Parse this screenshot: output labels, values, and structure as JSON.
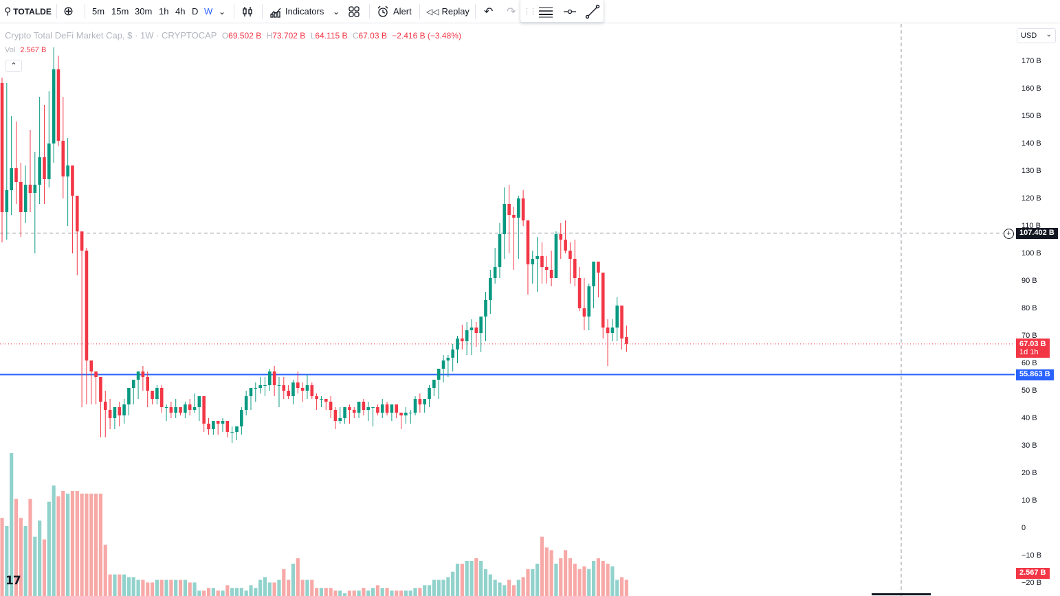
{
  "toolbar": {
    "symbol": "TOTALDE",
    "intervals": [
      "5m",
      "15m",
      "30m",
      "1h",
      "4h",
      "D",
      "W"
    ],
    "active_interval": "W",
    "indicators_label": "Indicators",
    "alert_label": "Alert",
    "replay_label": "Replay",
    "icons": [
      "search-icon",
      "add-symbol-icon",
      "interval-dropdown-icon",
      "candles-icon",
      "indicators-icon",
      "templates-icon",
      "alert-icon",
      "replay-icon",
      "undo-icon",
      "redo-icon",
      "drag-handle-icon",
      "line-width-icon",
      "line-style-icon",
      "trendline-icon"
    ]
  },
  "legend": {
    "title": "Crypto Total DeFi Market Cap, $ · 1W · CRYPTOCAP",
    "o_label": "O",
    "o": "69.502 B",
    "h_label": "H",
    "h": "73.702 B",
    "l_label": "L",
    "l": "64.115 B",
    "c_label": "C",
    "c": "67.03 B",
    "change": "−2.416 B (−3.48%)",
    "vol_label": "Vol",
    "vol": "2.567 B",
    "collapse_icon": "chevron-up-icon"
  },
  "price_axis": {
    "currency": "USD",
    "labels": [
      "170 B",
      "160 B",
      "150 B",
      "140 B",
      "130 B",
      "120 B",
      "110 B",
      "100 B",
      "90 B",
      "80 B",
      "70 B",
      "60 B",
      "50 B",
      "40 B",
      "30 B",
      "20 B",
      "10 B",
      "0",
      "−10 B",
      "−20 B"
    ],
    "last_price": "67.03 B",
    "countdown": "1d 1h",
    "horizontal_line": "55.863 B",
    "crosshair_price": "107.402 B",
    "volume_last": "2.567 B"
  },
  "colors": {
    "up": "#089981",
    "down": "#f23645",
    "up_vol": "#92d2cc",
    "down_vol": "#f7a9a7",
    "hline": "#2962ff"
  },
  "chart_data": {
    "type": "candlestick",
    "title": "Crypto Total DeFi Market Cap, $ · 1W · CRYPTOCAP",
    "unit": "B",
    "ylim": [
      -20,
      175
    ],
    "horizontal_line": 55.863,
    "crosshair_price": 107.402,
    "series": [
      {
        "name": "OHLC",
        "values": [
          [
            162,
            164,
            104,
            115
          ],
          [
            115,
            162,
            105,
            123
          ],
          [
            123,
            150,
            114,
            131
          ],
          [
            131,
            148,
            118,
            126
          ],
          [
            126,
            133,
            106,
            115
          ],
          [
            115,
            132,
            111,
            125
          ],
          [
            125,
            145,
            115,
            122
          ],
          [
            122,
            137,
            100,
            125
          ],
          [
            125,
            157,
            118,
            135
          ],
          [
            135,
            154,
            118,
            127
          ],
          [
            127,
            159,
            124,
            140
          ],
          [
            140,
            175,
            133,
            167
          ],
          [
            167,
            172,
            139,
            141
          ],
          [
            141,
            157,
            120,
            128
          ],
          [
            128,
            142,
            110,
            132
          ],
          [
            132,
            130,
            100,
            121
          ],
          [
            121,
            118,
            92,
            108
          ],
          [
            108,
            100,
            44,
            101
          ],
          [
            101,
            102,
            45,
            61
          ],
          [
            61,
            58,
            45,
            57
          ],
          [
            57,
            57,
            45,
            55
          ],
          [
            55,
            52,
            33,
            46
          ],
          [
            46,
            50,
            33,
            43
          ],
          [
            43,
            47,
            36,
            40
          ],
          [
            40,
            44,
            36,
            44
          ],
          [
            44,
            46,
            37,
            41
          ],
          [
            41,
            47,
            38,
            45
          ],
          [
            45,
            51,
            41,
            51
          ],
          [
            51,
            54,
            45,
            54
          ],
          [
            54,
            57,
            47,
            57
          ],
          [
            57,
            59,
            50,
            55
          ],
          [
            55,
            57,
            44,
            50
          ],
          [
            50,
            50,
            45,
            47
          ],
          [
            47,
            52,
            45,
            51
          ],
          [
            51,
            52,
            42,
            44
          ],
          [
            44,
            45,
            39,
            44
          ],
          [
            44,
            46,
            40,
            42
          ],
          [
            42,
            47,
            40,
            44
          ],
          [
            44,
            44,
            41,
            42
          ],
          [
            42,
            46,
            40,
            45
          ],
          [
            45,
            47,
            41,
            43
          ],
          [
            43,
            49,
            42,
            44
          ],
          [
            44,
            48,
            39,
            48
          ],
          [
            48,
            48,
            35,
            38
          ],
          [
            38,
            40,
            34,
            36
          ],
          [
            36,
            39,
            34,
            39
          ],
          [
            39,
            39,
            34,
            38
          ],
          [
            38,
            40,
            35,
            39
          ],
          [
            39,
            39,
            33,
            35
          ],
          [
            35,
            37,
            31,
            35
          ],
          [
            35,
            36,
            32,
            37
          ],
          [
            37,
            44,
            34,
            43
          ],
          [
            43,
            50,
            41,
            48
          ],
          [
            48,
            51,
            43,
            51
          ],
          [
            51,
            53,
            46,
            51
          ],
          [
            51,
            55,
            49,
            52
          ],
          [
            52,
            55,
            48,
            52
          ],
          [
            52,
            58,
            50,
            57
          ],
          [
            57,
            59,
            48,
            52
          ],
          [
            52,
            55,
            44,
            52
          ],
          [
            52,
            55,
            47,
            50
          ],
          [
            50,
            52,
            47,
            48
          ],
          [
            48,
            54,
            45,
            53
          ],
          [
            53,
            57,
            49,
            51
          ],
          [
            51,
            53,
            46,
            50
          ],
          [
            50,
            56,
            47,
            52
          ],
          [
            52,
            53,
            47,
            48
          ],
          [
            48,
            49,
            43,
            47
          ],
          [
            47,
            48,
            44,
            47
          ],
          [
            47,
            47,
            43,
            46
          ],
          [
            46,
            48,
            40,
            43
          ],
          [
            43,
            44,
            36,
            39
          ],
          [
            39,
            44,
            38,
            40
          ],
          [
            40,
            40,
            38,
            44
          ],
          [
            44,
            45,
            38,
            43
          ],
          [
            43,
            44,
            40,
            42
          ],
          [
            42,
            45,
            40,
            46
          ],
          [
            46,
            47,
            41,
            43
          ],
          [
            43,
            46,
            39,
            44
          ],
          [
            44,
            44,
            37,
            44
          ],
          [
            44,
            45,
            41,
            42
          ],
          [
            42,
            47,
            40,
            45
          ],
          [
            45,
            46,
            41,
            42
          ],
          [
            42,
            43,
            39,
            45
          ],
          [
            45,
            45,
            40,
            42
          ],
          [
            42,
            41,
            36,
            41
          ],
          [
            41,
            44,
            38,
            42
          ],
          [
            42,
            43,
            38,
            42
          ],
          [
            42,
            48,
            41,
            47
          ],
          [
            47,
            49,
            42,
            45
          ],
          [
            45,
            47,
            42,
            47
          ],
          [
            47,
            52,
            44,
            51
          ],
          [
            51,
            54,
            48,
            54
          ],
          [
            54,
            55,
            47,
            58
          ],
          [
            58,
            63,
            53,
            61
          ],
          [
            61,
            63,
            55,
            62
          ],
          [
            62,
            67,
            57,
            65
          ],
          [
            65,
            70,
            60,
            69
          ],
          [
            69,
            74,
            65,
            68
          ],
          [
            68,
            75,
            63,
            72
          ],
          [
            72,
            76,
            63,
            73
          ],
          [
            73,
            75,
            66,
            71
          ],
          [
            71,
            77,
            64,
            77
          ],
          [
            77,
            86,
            68,
            83
          ],
          [
            83,
            94,
            78,
            91
          ],
          [
            91,
            102,
            89,
            95
          ],
          [
            95,
            111,
            91,
            107
          ],
          [
            107,
            124,
            98,
            118
          ],
          [
            118,
            125,
            100,
            114
          ],
          [
            114,
            117,
            94,
            113
          ],
          [
            113,
            121,
            98,
            120
          ],
          [
            120,
            123,
            110,
            112
          ],
          [
            112,
            104,
            85,
            96
          ],
          [
            96,
            101,
            89,
            98
          ],
          [
            98,
            106,
            86,
            99
          ],
          [
            99,
            104,
            89,
            95
          ],
          [
            95,
            99,
            89,
            94
          ],
          [
            94,
            101,
            88,
            91
          ],
          [
            91,
            108,
            92,
            107
          ],
          [
            107,
            111,
            98,
            105
          ],
          [
            105,
            112,
            100,
            101
          ],
          [
            101,
            104,
            89,
            98
          ],
          [
            98,
            105,
            88,
            91
          ],
          [
            91,
            95,
            79,
            80
          ],
          [
            80,
            91,
            72,
            77
          ],
          [
            77,
            89,
            72,
            88
          ],
          [
            88,
            97,
            80,
            97
          ],
          [
            97,
            91,
            84,
            93
          ],
          [
            93,
            90,
            69,
            73
          ],
          [
            73,
            76,
            59,
            71
          ],
          [
            71,
            76,
            68,
            73
          ],
          [
            73,
            84,
            68,
            81
          ],
          [
            81,
            81,
            65,
            69
          ],
          [
            69.502,
            73.702,
            64.115,
            67.03
          ]
        ]
      },
      {
        "name": "Volume",
        "values": [
          29,
          26,
          53,
          36,
          29,
          26,
          36,
          22,
          28,
          21,
          35,
          41,
          37,
          39,
          38,
          39,
          39,
          38,
          38,
          38,
          38,
          38,
          19,
          8,
          8,
          8,
          8,
          7,
          7,
          6,
          6,
          5,
          5,
          6,
          6,
          6,
          6,
          6,
          6,
          6,
          5,
          5,
          2,
          2,
          3,
          3,
          2,
          2,
          4,
          3,
          3,
          3,
          2,
          4,
          3,
          6,
          7,
          5,
          5,
          6,
          10,
          6,
          12,
          14,
          6,
          6,
          6,
          3,
          3,
          3,
          3,
          2,
          2,
          1,
          2,
          2,
          2,
          3,
          2,
          3,
          4,
          3,
          3,
          2,
          2,
          2,
          2,
          2,
          3,
          3,
          4,
          4,
          6,
          6,
          6,
          7,
          9,
          12,
          12,
          13,
          13,
          14,
          13,
          10,
          8,
          6,
          5,
          4,
          6,
          4,
          6,
          7,
          10,
          10,
          12,
          22,
          18,
          17,
          12,
          14,
          17,
          14,
          12,
          10,
          11,
          10,
          13,
          14,
          13,
          12,
          11,
          6,
          7,
          6,
          6,
          21,
          7,
          6,
          7,
          2.567
        ]
      }
    ],
    "direction": "last bar down"
  }
}
